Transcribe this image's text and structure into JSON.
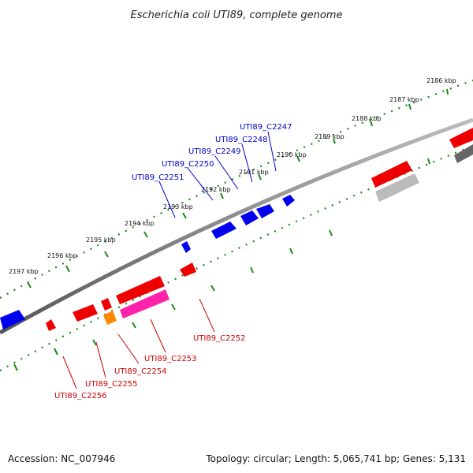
{
  "title": "Escherichia coli UTI89, complete genome",
  "footer": {
    "accession": "Accession: NC_007946",
    "summary": "Topology: circular; Length: 5,065,741 bp; Genes: 5,131"
  },
  "colors": {
    "backbone": "#777777",
    "tick": "#1a8a1a",
    "forward_gene": "#0000ee",
    "reverse_gene": "#ee0000",
    "highlight_gene": "#ff22aa",
    "orange_gene": "#ff8800",
    "grey_gene": "#bbbbbb",
    "forward_label": "#0000cc",
    "reverse_label": "#cc0000"
  },
  "ticks": [
    {
      "label": "2186 kbp"
    },
    {
      "label": "2187 kbp"
    },
    {
      "label": "2188 kbp"
    },
    {
      "label": "2189 kbp"
    },
    {
      "label": "2190 kbp"
    },
    {
      "label": "2191 kbp"
    },
    {
      "label": "2192 kbp"
    },
    {
      "label": "2193 kbp"
    },
    {
      "label": "2194 kbp"
    },
    {
      "label": "2195 kbp"
    },
    {
      "label": "2196 kbp"
    },
    {
      "label": "2197 kbp"
    }
  ],
  "forward_labels": [
    {
      "name": "UTI89_C2247"
    },
    {
      "name": "UTI89_C2248"
    },
    {
      "name": "UTI89_C2249"
    },
    {
      "name": "UTI89_C2250"
    },
    {
      "name": "UTI89_C2251"
    }
  ],
  "reverse_labels": [
    {
      "name": "UTI89_C2252"
    },
    {
      "name": "UTI89_C2253"
    },
    {
      "name": "UTI89_C2254"
    },
    {
      "name": "UTI89_C2255"
    },
    {
      "name": "UTI89_C2256"
    }
  ]
}
